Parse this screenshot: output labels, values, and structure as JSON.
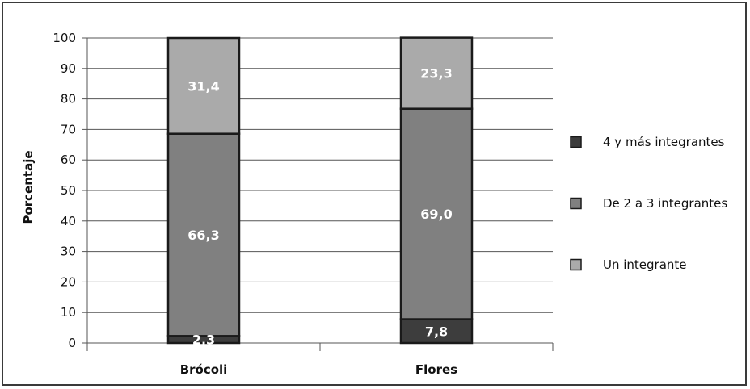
{
  "chart_data": {
    "type": "bar",
    "stacked": true,
    "categories": [
      "Brócoli",
      "Flores"
    ],
    "ylabel": "Porcentaje",
    "ylim": [
      0,
      100
    ],
    "yticks": [
      0,
      10,
      20,
      30,
      40,
      50,
      60,
      70,
      80,
      90,
      100
    ],
    "grid": true,
    "legend_position": "right",
    "series": [
      {
        "name": "4 y más integrantes",
        "values": [
          2.3,
          7.8
        ],
        "labels": [
          "2,3",
          "7,8"
        ],
        "color": "#3d3d3d"
      },
      {
        "name": "De 2 a 3 integrantes",
        "values": [
          66.3,
          69.0
        ],
        "labels": [
          "66,3",
          "69,0"
        ],
        "color": "#808080"
      },
      {
        "name": "Un integrante",
        "values": [
          31.4,
          23.3
        ],
        "labels": [
          "31,4",
          "23,3"
        ],
        "color": "#aaaaaa"
      }
    ],
    "legend_order": [
      0,
      1,
      2
    ]
  }
}
